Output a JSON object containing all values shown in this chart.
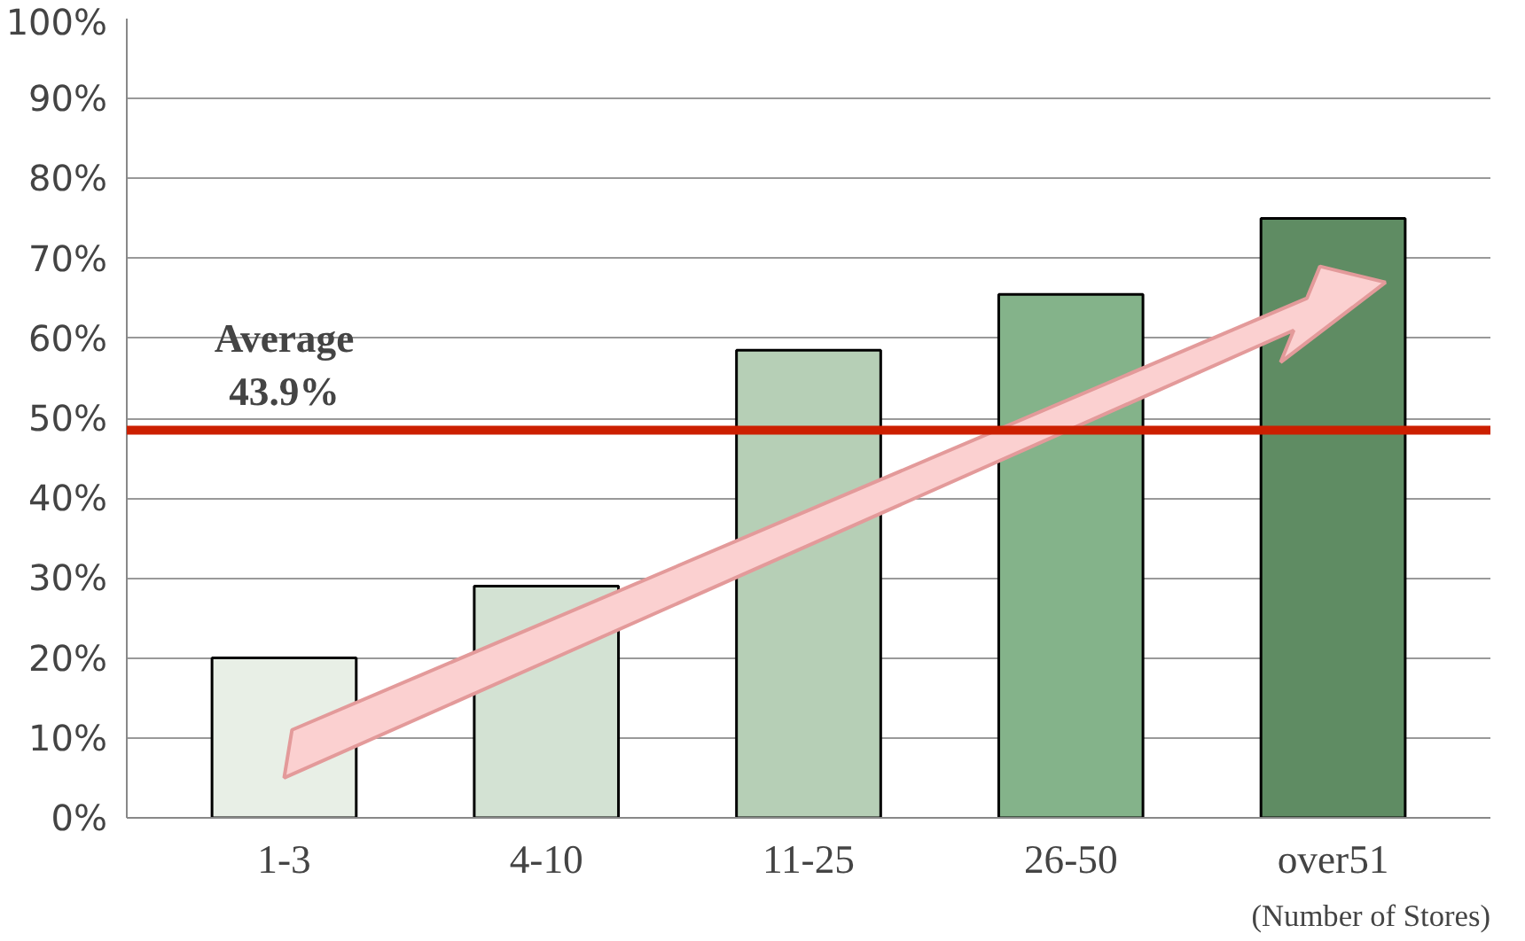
{
  "chart_data": {
    "type": "bar",
    "categories": [
      "1-3",
      "4-10",
      "11-25",
      "26-50",
      "over51"
    ],
    "values": [
      20,
      29,
      58.5,
      65.5,
      75
    ],
    "colors": [
      "#e8efe6",
      "#d3e2d3",
      "#b6cfb6",
      "#84b38a",
      "#5f8c63"
    ],
    "ylim": [
      0,
      100
    ],
    "yticks": [
      {
        "value": 0,
        "label": "0%"
      },
      {
        "value": 10,
        "label": "10%"
      },
      {
        "value": 20,
        "label": "20%"
      },
      {
        "value": 30,
        "label": "30%"
      },
      {
        "value": 40,
        "label": "40%"
      },
      {
        "value": 50,
        "label": "50%"
      },
      {
        "value": 60,
        "label": "60%"
      },
      {
        "value": 70,
        "label": "70%"
      },
      {
        "value": 80,
        "label": "80%"
      },
      {
        "value": 90,
        "label": "90%"
      },
      {
        "value": 100,
        "label": "100%"
      }
    ],
    "grid": "y",
    "ref_lines": [
      {
        "axis": "y",
        "value": 48.5,
        "label": null,
        "color": "#cc1f00"
      }
    ],
    "annotations": [
      {
        "text": "Average\n43.9%",
        "x": "1-3",
        "y": 48.5
      },
      "(Number of Stores)"
    ]
  }
}
